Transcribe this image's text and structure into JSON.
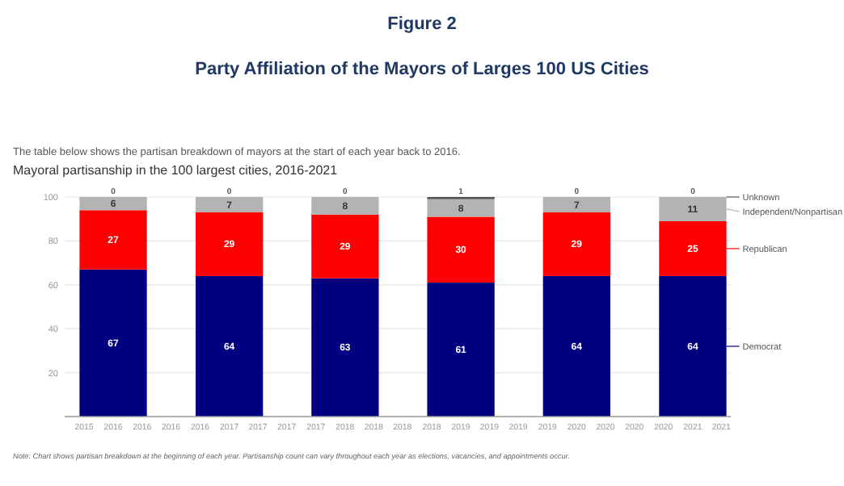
{
  "chart_data": {
    "type": "bar",
    "title": "Figure 2",
    "subtitle": "Party Affiliation of the Mayors of Larges 100 US Cities",
    "annotations": [
      "The table below shows the partisan breakdown of mayors at the start of each year back to 2016.",
      "Mayoral partisanship in the 100 largest cities, 2016-2021",
      "Note: Chart shows partisan breakdown at the beginning of each year. Partisanship count can vary throughout each year as elections, vacancies, and appointments occur."
    ],
    "x": [
      "2016",
      "2017",
      "2018",
      "2019",
      "2020",
      "2021"
    ],
    "stacked": true,
    "series": [
      {
        "name": "Democrat",
        "color": "#000080",
        "values": [
          67,
          64,
          63,
          61,
          64,
          64
        ]
      },
      {
        "name": "Republican",
        "color": "#ff0000",
        "values": [
          27,
          29,
          29,
          30,
          29,
          25
        ]
      },
      {
        "name": "Independent/Nonpartisan",
        "color": "#b3b3b3",
        "values": [
          6,
          7,
          8,
          8,
          7,
          11
        ]
      },
      {
        "name": "Unknown",
        "color": "#555555",
        "values": [
          0,
          0,
          0,
          1,
          0,
          0
        ]
      }
    ],
    "xlim": [
      "2015-08",
      "2021-05"
    ],
    "xticks": [
      {
        "value": "2015-10",
        "label": "2015"
      },
      {
        "value": "2016-01",
        "label": "2016"
      },
      {
        "value": "2016-04",
        "label": "2016"
      },
      {
        "value": "2016-07",
        "label": "2016"
      },
      {
        "value": "2016-10",
        "label": "2016"
      },
      {
        "value": "2017-01",
        "label": "2017"
      },
      {
        "value": "2017-04",
        "label": "2017"
      },
      {
        "value": "2017-07",
        "label": "2017"
      },
      {
        "value": "2017-10",
        "label": "2017"
      },
      {
        "value": "2018-01",
        "label": "2018"
      },
      {
        "value": "2018-04",
        "label": "2018"
      },
      {
        "value": "2018-07",
        "label": "2018"
      },
      {
        "value": "2018-10",
        "label": "2018"
      },
      {
        "value": "2019-01",
        "label": "2019"
      },
      {
        "value": "2019-04",
        "label": "2019"
      },
      {
        "value": "2019-07",
        "label": "2019"
      },
      {
        "value": "2019-10",
        "label": "2019"
      },
      {
        "value": "2020-01",
        "label": "2020"
      },
      {
        "value": "2020-04",
        "label": "2020"
      },
      {
        "value": "2020-07",
        "label": "2020"
      },
      {
        "value": "2020-10",
        "label": "2020"
      },
      {
        "value": "2021-01",
        "label": "2021"
      },
      {
        "value": "2021-04",
        "label": "2021"
      }
    ],
    "ylim": [
      0,
      100
    ],
    "yticks": [
      20,
      40,
      60,
      80,
      100
    ],
    "grid": "y",
    "legend": "right",
    "data_labels": true
  }
}
